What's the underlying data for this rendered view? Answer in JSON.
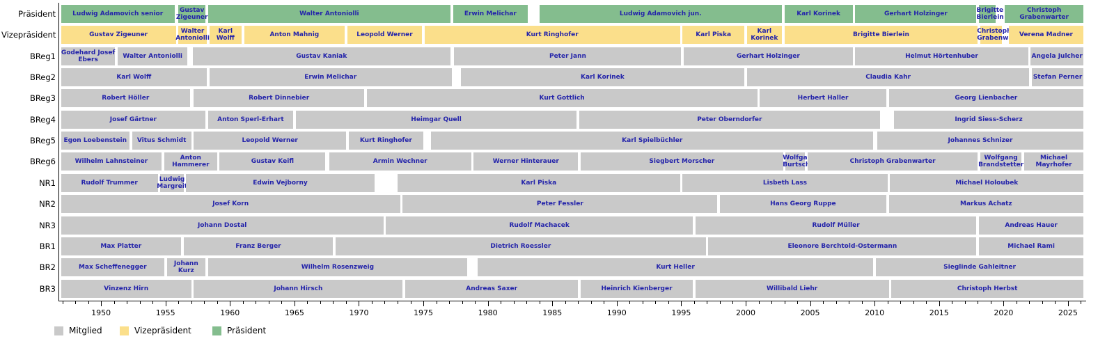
{
  "legend": {
    "items": [
      {
        "label": "Mitglied",
        "color_key": "mitglied"
      },
      {
        "label": "Vizepräsident",
        "color_key": "vizepraesident"
      },
      {
        "label": "Präsident",
        "color_key": "praesident"
      }
    ]
  },
  "colors": {
    "mitglied": "#c9c9c9",
    "vizepraesident": "#fbdf8b",
    "praesident": "#84bd8e",
    "bar_text": "#2424aa",
    "axis": "#000000"
  },
  "chart_data": {
    "type": "timeline-gantt",
    "title": "",
    "x_axis": {
      "min": 1946.7,
      "max": 2026.3,
      "major_ticks": [
        1950,
        1955,
        1960,
        1965,
        1970,
        1975,
        1980,
        1985,
        1990,
        1995,
        2000,
        2005,
        2010,
        2015,
        2020,
        2025
      ],
      "minor_tick_step": 1
    },
    "rows": [
      {
        "label": "Präsident",
        "color_key": "praesident",
        "segments": [
          {
            "name": "Ludwig Adamovich senior",
            "start": 1946.9,
            "end": 1955.7
          },
          {
            "name": "Gustav Zigeuner",
            "start": 1956.0,
            "end": 1958.1
          },
          {
            "name": "Walter Antoniolli",
            "start": 1958.3,
            "end": 1977.1
          },
          {
            "name": "Erwin Melichar",
            "start": 1977.3,
            "end": 1983.1
          },
          {
            "name": "Ludwig Adamovich jun.",
            "start": 1984.0,
            "end": 2002.8
          },
          {
            "name": "Karl Korinek",
            "start": 2003.0,
            "end": 2008.3
          },
          {
            "name": "Gerhart Holzinger",
            "start": 2008.5,
            "end": 2017.9
          },
          {
            "name": "Brigitte Bierlein",
            "start": 2018.1,
            "end": 2019.4
          },
          {
            "name": "Christoph Grabenwarter",
            "start": 2020.1,
            "end": 2026.2
          }
        ]
      },
      {
        "label": "Vizepräsident",
        "color_key": "vizepraesident",
        "segments": [
          {
            "name": "Gustav Zigeuner",
            "start": 1946.9,
            "end": 1955.8
          },
          {
            "name": "Walter Antoniolli",
            "start": 1956.0,
            "end": 1958.2
          },
          {
            "name": "Karl Wolff",
            "start": 1958.4,
            "end": 1960.9
          },
          {
            "name": "Anton Mahnig",
            "start": 1961.1,
            "end": 1968.9
          },
          {
            "name": "Leopold Werner",
            "start": 1969.1,
            "end": 1974.9
          },
          {
            "name": "Kurt Ringhofer",
            "start": 1975.1,
            "end": 1994.9
          },
          {
            "name": "Karl Piska",
            "start": 1995.1,
            "end": 1999.9
          },
          {
            "name": "Karl Korinek",
            "start": 2000.1,
            "end": 2002.8
          },
          {
            "name": "Brigitte Bierlein",
            "start": 2003.0,
            "end": 2018.0
          },
          {
            "name": "Christoph Grabenwarter",
            "start": 2018.2,
            "end": 2019.9
          },
          {
            "name": "Verena Madner",
            "start": 2020.4,
            "end": 2026.2
          }
        ]
      },
      {
        "label": "BReg1",
        "color_key": "mitglied",
        "segments": [
          {
            "name": "Godehard Josef Ebers",
            "start": 1946.9,
            "end": 1951.1
          },
          {
            "name": "Walter Antoniolli",
            "start": 1951.3,
            "end": 1956.7
          },
          {
            "name": "Gustav Kaniak",
            "start": 1957.1,
            "end": 1977.1
          },
          {
            "name": "Peter Jann",
            "start": 1977.4,
            "end": 1995.0
          },
          {
            "name": "Gerhart Holzinger",
            "start": 1995.2,
            "end": 2008.3
          },
          {
            "name": "Helmut Hörtenhuber",
            "start": 2008.5,
            "end": 2021.9
          },
          {
            "name": "Angela Julcher",
            "start": 2022.1,
            "end": 2026.2
          }
        ]
      },
      {
        "label": "BReg2",
        "color_key": "mitglied",
        "segments": [
          {
            "name": "Karl Wolff",
            "start": 1946.9,
            "end": 1958.2
          },
          {
            "name": "Erwin Melichar",
            "start": 1958.4,
            "end": 1977.2
          },
          {
            "name": "Karl Korinek",
            "start": 1977.9,
            "end": 1999.9
          },
          {
            "name": "Claudia Kahr",
            "start": 2000.1,
            "end": 2022.0
          },
          {
            "name": "Stefan Perner",
            "start": 2022.2,
            "end": 2026.2
          }
        ]
      },
      {
        "label": "BReg3",
        "color_key": "mitglied",
        "segments": [
          {
            "name": "Robert Höller",
            "start": 1946.9,
            "end": 1956.9
          },
          {
            "name": "Robert Dinnebier",
            "start": 1957.2,
            "end": 1970.4
          },
          {
            "name": "Kurt Gottlich",
            "start": 1970.6,
            "end": 2000.9
          },
          {
            "name": "Herbert Haller",
            "start": 2001.1,
            "end": 2010.9
          },
          {
            "name": "Georg Lienbacher",
            "start": 2011.1,
            "end": 2026.2
          }
        ]
      },
      {
        "label": "BReg4",
        "color_key": "mitglied",
        "segments": [
          {
            "name": "Josef Gärtner",
            "start": 1946.9,
            "end": 1958.1
          },
          {
            "name": "Anton Sperl-Erhart",
            "start": 1958.3,
            "end": 1964.9
          },
          {
            "name": "Heimgar Quell",
            "start": 1965.1,
            "end": 1986.9
          },
          {
            "name": "Peter Oberndorfer",
            "start": 1987.1,
            "end": 2010.4
          },
          {
            "name": "Ingrid Siess-Scherz",
            "start": 2011.5,
            "end": 2026.2
          }
        ]
      },
      {
        "label": "BReg5",
        "color_key": "mitglied",
        "segments": [
          {
            "name": "Egon Loebenstein",
            "start": 1946.9,
            "end": 1952.2
          },
          {
            "name": "Vitus Schmidt",
            "start": 1952.4,
            "end": 1957.0
          },
          {
            "name": "Leopold Werner",
            "start": 1957.2,
            "end": 1969.0
          },
          {
            "name": "Kurt Ringhofer",
            "start": 1969.2,
            "end": 1975.0
          },
          {
            "name": "Karl Spielbüchler",
            "start": 1975.6,
            "end": 2009.9
          },
          {
            "name": "Johannes Schnizer",
            "start": 2010.2,
            "end": 2026.2
          }
        ]
      },
      {
        "label": "BReg6",
        "color_key": "mitglied",
        "segments": [
          {
            "name": "Wilhelm Lahnsteiner",
            "start": 1946.9,
            "end": 1954.7
          },
          {
            "name": "Anton Hammerer",
            "start": 1954.9,
            "end": 1959.0
          },
          {
            "name": "Gustav Keifl",
            "start": 1959.2,
            "end": 1967.4
          },
          {
            "name": "Armin Wechner",
            "start": 1967.7,
            "end": 1978.7
          },
          {
            "name": "Werner Hinterauer",
            "start": 1978.9,
            "end": 1987.0
          },
          {
            "name": "Siegbert Morscher",
            "start": 1987.2,
            "end": 2002.9
          },
          {
            "name": "Wolfgang Burtscher",
            "start": 2003.1,
            "end": 2004.6
          },
          {
            "name": "Christoph Grabenwarter",
            "start": 2004.8,
            "end": 2018.0
          },
          {
            "name": "Wolfgang Brandstetter",
            "start": 2018.2,
            "end": 2021.4
          },
          {
            "name": "Michael Mayrhofer",
            "start": 2021.6,
            "end": 2026.2
          }
        ]
      },
      {
        "label": "NR1",
        "color_key": "mitglied",
        "segments": [
          {
            "name": "Rudolf Trummer",
            "start": 1946.9,
            "end": 1954.4
          },
          {
            "name": "Ludwig Margreiter",
            "start": 1954.6,
            "end": 1956.4
          },
          {
            "name": "Edwin Vejborny",
            "start": 1956.6,
            "end": 1971.2
          },
          {
            "name": "Karl Piska",
            "start": 1973.0,
            "end": 1994.9
          },
          {
            "name": "Lisbeth Lass",
            "start": 1995.1,
            "end": 2011.0
          },
          {
            "name": "Michael Holoubek",
            "start": 2011.2,
            "end": 2026.2
          }
        ]
      },
      {
        "label": "NR2",
        "color_key": "mitglied",
        "segments": [
          {
            "name": "Josef Korn",
            "start": 1946.9,
            "end": 1973.2
          },
          {
            "name": "Peter Fessler",
            "start": 1973.4,
            "end": 1997.8
          },
          {
            "name": "Hans Georg Ruppe",
            "start": 1998.0,
            "end": 2010.9
          },
          {
            "name": "Markus Achatz",
            "start": 2011.1,
            "end": 2026.2
          }
        ]
      },
      {
        "label": "NR3",
        "color_key": "mitglied",
        "segments": [
          {
            "name": "Johann Dostal",
            "start": 1946.9,
            "end": 1971.9
          },
          {
            "name": "Rudolf Machacek",
            "start": 1972.1,
            "end": 1995.9
          },
          {
            "name": "Rudolf Müller",
            "start": 1996.1,
            "end": 2017.9
          },
          {
            "name": "Andreas Hauer",
            "start": 2018.1,
            "end": 2026.2
          }
        ]
      },
      {
        "label": "BR1",
        "color_key": "mitglied",
        "segments": [
          {
            "name": "Max Platter",
            "start": 1946.9,
            "end": 1956.2
          },
          {
            "name": "Franz Berger",
            "start": 1956.4,
            "end": 1968.0
          },
          {
            "name": "Dietrich Roessler",
            "start": 1968.2,
            "end": 1996.9
          },
          {
            "name": "Eleonore Berchtold-Ostermann",
            "start": 1997.1,
            "end": 2017.9
          },
          {
            "name": "Michael Rami",
            "start": 2018.1,
            "end": 2026.2
          }
        ]
      },
      {
        "label": "BR2",
        "color_key": "mitglied",
        "segments": [
          {
            "name": "Max Scheffenegger",
            "start": 1946.9,
            "end": 1954.9
          },
          {
            "name": "Johann Kurz",
            "start": 1955.1,
            "end": 1958.1
          },
          {
            "name": "Wilhelm Rosenzweig",
            "start": 1958.3,
            "end": 1978.4
          },
          {
            "name": "Kurt Heller",
            "start": 1979.2,
            "end": 2009.9
          },
          {
            "name": "Sieglinde Gahleitner",
            "start": 2010.1,
            "end": 2026.2
          }
        ]
      },
      {
        "label": "BR3",
        "color_key": "mitglied",
        "segments": [
          {
            "name": "Vinzenz Hirn",
            "start": 1946.9,
            "end": 1957.0
          },
          {
            "name": "Johann Hirsch",
            "start": 1957.2,
            "end": 1973.4
          },
          {
            "name": "Andreas Saxer",
            "start": 1973.6,
            "end": 1987.0
          },
          {
            "name": "Heinrich Kienberger",
            "start": 1987.2,
            "end": 1995.9
          },
          {
            "name": "Willibald Liehr",
            "start": 1996.1,
            "end": 2011.1
          },
          {
            "name": "Christoph Herbst",
            "start": 2011.3,
            "end": 2026.2
          }
        ]
      }
    ]
  }
}
